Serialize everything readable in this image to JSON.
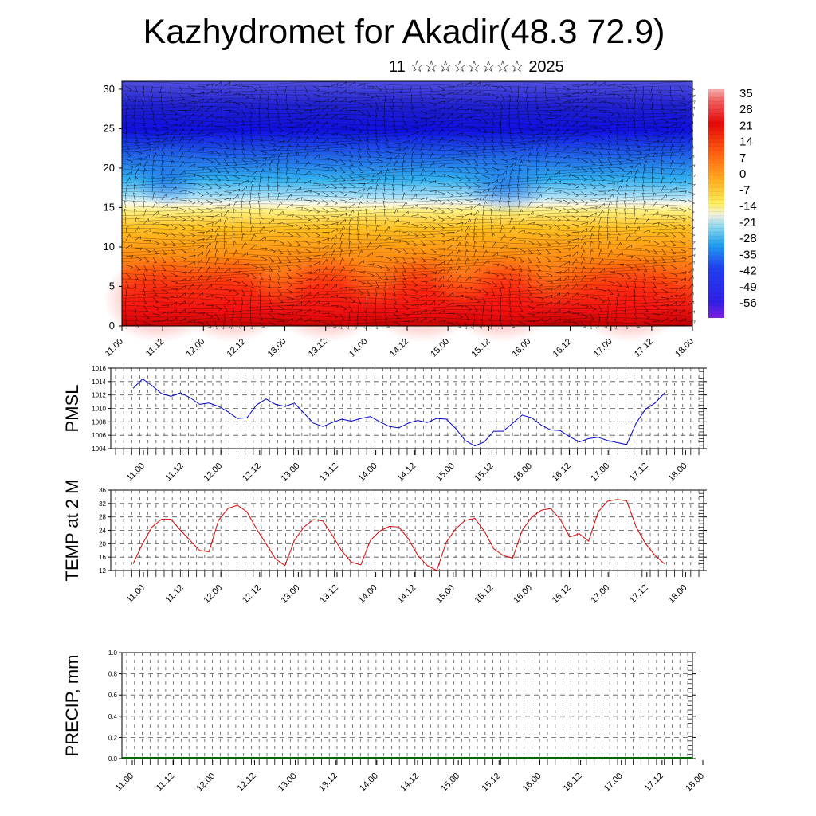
{
  "title": "Kazhydromet for Akadir(48.3 72.9)",
  "subtitle": "11 ☆☆☆☆☆☆☆☆ 2025",
  "time_ticks": [
    "11.00",
    "11.12",
    "12.00",
    "12.12",
    "13.00",
    "13.12",
    "14.00",
    "14.12",
    "15.00",
    "15.12",
    "16.00",
    "16.12",
    "17.00",
    "17.12",
    "18.00"
  ],
  "colors": {
    "pmsl": "#0000cc",
    "temp": "#dd0000",
    "precip": "#006600",
    "grid": "#555555"
  },
  "chart_data": [
    {
      "type": "heatmap",
      "name": "cross-section",
      "y_ticks": [
        "0",
        "5",
        "10",
        "15",
        "20",
        "25",
        "30"
      ],
      "ylim": [
        0,
        31
      ],
      "colorbar": {
        "labels": [
          "35",
          "28",
          "21",
          "14",
          "7",
          "0",
          "-7",
          "-14",
          "-21",
          "-28",
          "-35",
          "-42",
          "-49",
          "-56"
        ],
        "range": [
          -63,
          42
        ]
      },
      "note_layers": [
        {
          "level": 0,
          "value": 31
        },
        {
          "level": 5,
          "value": 25
        },
        {
          "level": 10,
          "value": 10
        },
        {
          "level": 15,
          "value": -8
        },
        {
          "level": 17,
          "value": -25
        },
        {
          "level": 20,
          "value": -40
        },
        {
          "level": 25,
          "value": -56
        },
        {
          "level": 31,
          "value": -50
        }
      ]
    },
    {
      "type": "line",
      "ylabel": "PMSL",
      "ylim": [
        1004,
        1016
      ],
      "y_ticks": [
        "1004",
        "1006",
        "1008",
        "1010",
        "1012",
        "1014",
        "1016"
      ],
      "x_step_hours": 3,
      "values": [
        1013.0,
        1014.4,
        1013.4,
        1012.2,
        1011.8,
        1012.3,
        1011.6,
        1010.6,
        1010.8,
        1010.3,
        1009.5,
        1008.5,
        1008.6,
        1010.5,
        1011.4,
        1010.6,
        1010.3,
        1010.8,
        1009.3,
        1007.8,
        1007.3,
        1007.9,
        1008.4,
        1008.1,
        1008.5,
        1008.8,
        1008.0,
        1007.3,
        1007.1,
        1007.8,
        1008.2,
        1007.9,
        1008.5,
        1008.4,
        1007.0,
        1005.2,
        1004.4,
        1005.0,
        1006.6,
        1006.6,
        1007.8,
        1009.0,
        1008.6,
        1007.5,
        1006.8,
        1006.7,
        1005.8,
        1005.0,
        1005.5,
        1005.7,
        1005.2,
        1004.9,
        1004.6,
        1007.8,
        1009.9,
        1010.8,
        1012.3
      ]
    },
    {
      "type": "line",
      "ylabel": "TEMP at 2 M",
      "ylim": [
        12,
        36
      ],
      "y_ticks": [
        "12",
        "16",
        "20",
        "24",
        "28",
        "32",
        "36"
      ],
      "x_step_hours": 3,
      "values": [
        14.0,
        20.0,
        25.0,
        27.3,
        27.3,
        24.0,
        21.0,
        18.0,
        17.6,
        27.0,
        30.5,
        31.5,
        29.5,
        24.5,
        20.0,
        15.5,
        13.5,
        21.0,
        25.0,
        27.2,
        26.8,
        22.5,
        17.8,
        14.5,
        13.7,
        21.0,
        23.8,
        25.2,
        25.0,
        21.5,
        16.5,
        13.5,
        12.0,
        20.5,
        24.5,
        27.0,
        27.6,
        23.8,
        18.5,
        16.5,
        15.7,
        24.0,
        28.0,
        30.0,
        30.5,
        27.3,
        22.0,
        23.0,
        20.8,
        29.5,
        32.7,
        33.2,
        32.8,
        25.0,
        20.0,
        16.5,
        14.0
      ]
    },
    {
      "type": "bar",
      "ylabel": "PRECIP, mm",
      "ylim": [
        0,
        1
      ],
      "y_ticks": [
        "0.0",
        "0.2",
        "0.4",
        "0.6",
        "0.8",
        "1.0"
      ],
      "x_step_hours": 3,
      "values": [
        0,
        0,
        0,
        0,
        0,
        0,
        0,
        0,
        0,
        0,
        0,
        0,
        0,
        0,
        0,
        0,
        0,
        0,
        0,
        0,
        0,
        0,
        0,
        0,
        0,
        0,
        0,
        0,
        0,
        0,
        0,
        0,
        0,
        0,
        0,
        0,
        0,
        0,
        0,
        0,
        0,
        0,
        0,
        0,
        0,
        0,
        0,
        0,
        0,
        0,
        0,
        0,
        0,
        0,
        0,
        0,
        0
      ]
    }
  ]
}
